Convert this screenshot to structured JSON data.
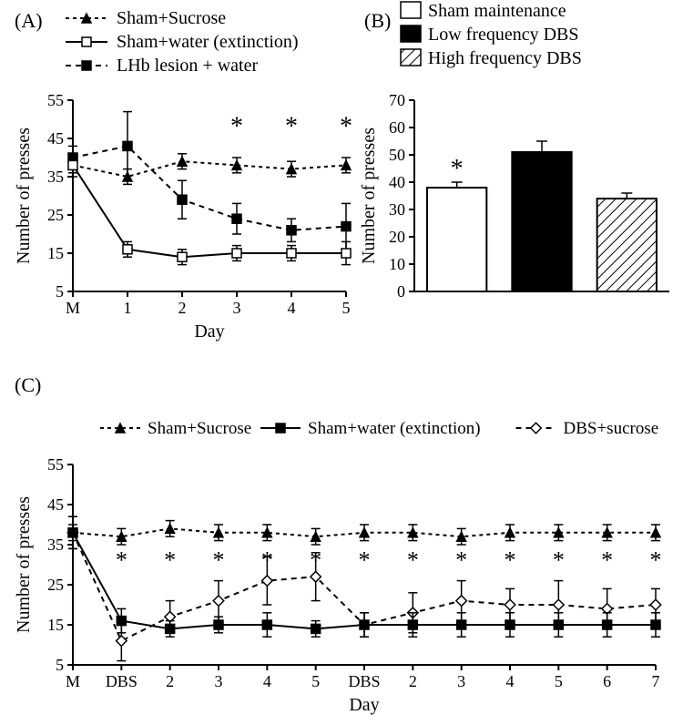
{
  "panelA": {
    "label": "(A)",
    "type": "line",
    "xlabel": "Day",
    "ylabel": "Number of presses",
    "xticks": [
      "M",
      "1",
      "2",
      "3",
      "4",
      "5"
    ],
    "ylim": [
      5,
      55
    ],
    "yticks": [
      5,
      15,
      25,
      35,
      45,
      55
    ],
    "label_fontsize": 20,
    "tick_fontsize": 18,
    "background_color": "#ffffff",
    "axis_color": "#000000",
    "line_width": 2,
    "marker_size": 5,
    "error_cap": 5,
    "legend": [
      {
        "label": "Sham+Sucrose",
        "marker": "triangle",
        "dash": "4,4",
        "fill": "#000000"
      },
      {
        "label": "Sham+water (extinction)",
        "marker": "square",
        "dash": "none",
        "fill": "#ffffff"
      },
      {
        "label": "LHb lesion + water",
        "marker": "square",
        "dash": "6,5",
        "fill": "#000000"
      }
    ],
    "series": {
      "sham_sucrose": {
        "y": [
          38,
          35,
          39,
          38,
          37,
          38
        ],
        "err": [
          2,
          2,
          2,
          2,
          2,
          2
        ]
      },
      "sham_water": {
        "y": [
          38,
          16,
          14,
          15,
          15,
          15
        ],
        "err": [
          3,
          2,
          2,
          2,
          2,
          3
        ]
      },
      "lhb_lesion": {
        "y": [
          40,
          43,
          29,
          24,
          21,
          22
        ],
        "err": [
          3,
          9,
          5,
          4,
          3,
          6
        ]
      }
    },
    "stars_x": [
      3,
      4,
      5
    ],
    "star_y": 48
  },
  "panelB": {
    "label": "(B)",
    "type": "bar",
    "ylabel": "Number of presses",
    "ylim": [
      0,
      70
    ],
    "yticks": [
      0,
      10,
      20,
      30,
      40,
      50,
      60,
      70
    ],
    "label_fontsize": 20,
    "tick_fontsize": 18,
    "axis_color": "#000000",
    "bar_width": 0.7,
    "background_color": "#ffffff",
    "legend": [
      {
        "label": "Sham maintenance",
        "fill": "#ffffff",
        "pattern": "none"
      },
      {
        "label": "Low frequency DBS",
        "fill": "#000000",
        "pattern": "none"
      },
      {
        "label": "High frequency DBS",
        "fill": "hatch",
        "pattern": "hatch"
      }
    ],
    "bars": [
      {
        "value": 38,
        "err": 2,
        "fill": "#ffffff",
        "pattern": "none",
        "star": true
      },
      {
        "value": 51,
        "err": 4,
        "fill": "#000000",
        "pattern": "none",
        "star": false
      },
      {
        "value": 34,
        "err": 2,
        "fill": "hatch",
        "pattern": "hatch",
        "star": false
      }
    ]
  },
  "panelC": {
    "label": "(C)",
    "type": "line",
    "xlabel": "Day",
    "ylabel": "Number of presses",
    "xticks": [
      "M",
      "DBS",
      "2",
      "3",
      "4",
      "5",
      "DBS",
      "2",
      "3",
      "4",
      "5",
      "6",
      "7"
    ],
    "ylim": [
      5,
      55
    ],
    "yticks": [
      5,
      15,
      25,
      35,
      45,
      55
    ],
    "label_fontsize": 20,
    "tick_fontsize": 18,
    "background_color": "#ffffff",
    "axis_color": "#000000",
    "line_width": 2,
    "marker_size": 5,
    "error_cap": 5,
    "legend": [
      {
        "label": "Sham+Sucrose",
        "marker": "triangle",
        "dash": "4,4",
        "fill": "#000000"
      },
      {
        "label": "Sham+water (extinction)",
        "marker": "square",
        "dash": "none",
        "fill": "#000000"
      },
      {
        "label": "DBS+sucrose",
        "marker": "diamond",
        "dash": "6,5",
        "fill": "#ffffff"
      }
    ],
    "series": {
      "sham_sucrose": {
        "y": [
          38,
          37,
          39,
          38,
          38,
          37,
          38,
          38,
          37,
          38,
          38,
          38,
          38
        ],
        "err": [
          2,
          2,
          2,
          2,
          2,
          2,
          2,
          2,
          2,
          2,
          2,
          2,
          2
        ]
      },
      "sham_water": {
        "y": [
          38,
          16,
          14,
          15,
          15,
          14,
          15,
          15,
          15,
          15,
          15,
          15,
          15
        ],
        "err": [
          4,
          3,
          2,
          2,
          3,
          2,
          3,
          3,
          3,
          3,
          3,
          3,
          3
        ]
      },
      "dbs_sucrose": {
        "y": [
          38,
          11,
          17,
          21,
          26,
          27,
          15,
          18,
          21,
          20,
          20,
          19,
          20
        ],
        "err": [
          4,
          5,
          4,
          5,
          6,
          6,
          3,
          5,
          5,
          4,
          6,
          5,
          4
        ]
      }
    },
    "stars_x": [
      1,
      2,
      3,
      4,
      5,
      6,
      7,
      8,
      9,
      10,
      11,
      12
    ],
    "star_y": 31
  },
  "colors": {
    "black": "#000000",
    "white": "#ffffff"
  }
}
